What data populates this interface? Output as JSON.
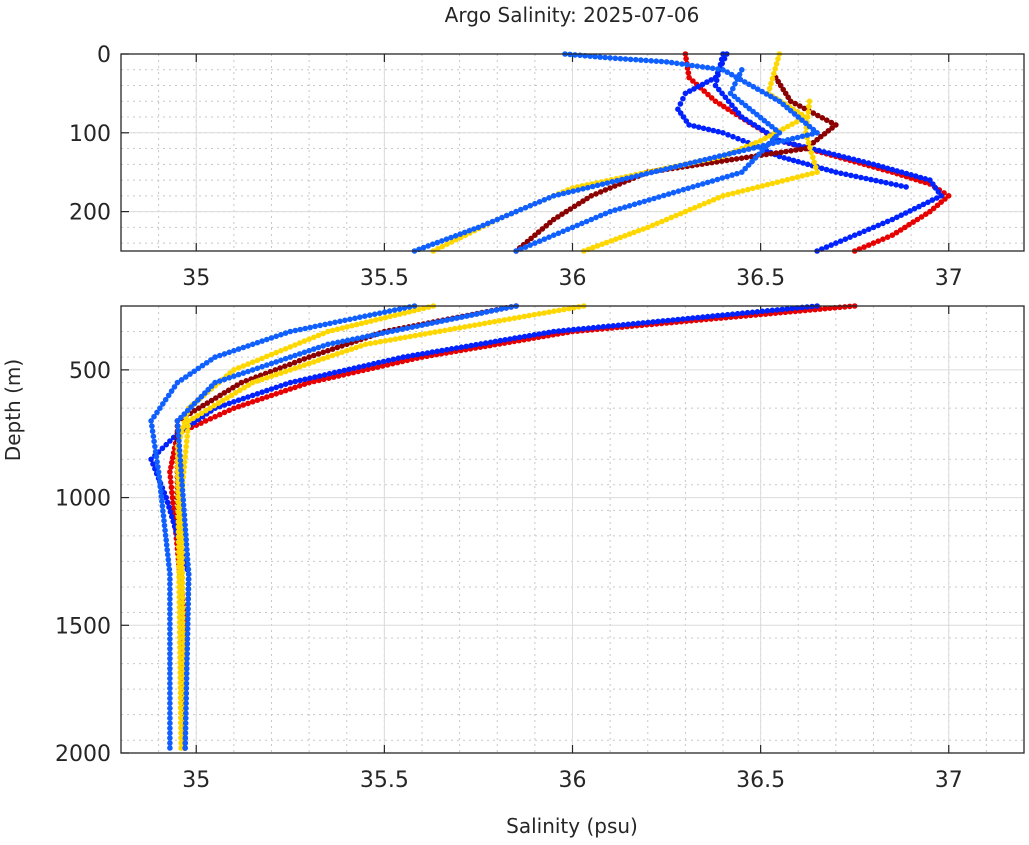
{
  "chart_data": {
    "type": "scatter",
    "title": "Argo Salinity: 2025-07-06",
    "xlabel": "Salinity (psu)",
    "ylabel": "Depth (m)",
    "grid": true,
    "panels": [
      {
        "xlim": [
          34.8,
          37.2
        ],
        "ylim": [
          0,
          250
        ],
        "xticks": [
          35,
          35.5,
          36,
          36.5,
          37
        ],
        "xtick_labels": [
          "35",
          "35.5",
          "36",
          "36.5",
          "37"
        ],
        "yticks": [
          0,
          100,
          200
        ],
        "ytick_labels": [
          "0",
          "100",
          "200"
        ]
      },
      {
        "xlim": [
          34.8,
          37.2
        ],
        "ylim": [
          250,
          2000
        ],
        "xticks": [
          35,
          35.5,
          36,
          36.5,
          37
        ],
        "xtick_labels": [
          "35",
          "35.5",
          "36",
          "36.5",
          "37"
        ],
        "yticks": [
          500,
          1000,
          1500,
          2000
        ],
        "ytick_labels": [
          "500",
          "1000",
          "1500",
          "2000"
        ]
      }
    ],
    "series": [
      {
        "color": "#e60000",
        "points": [
          [
            0,
            36.3
          ],
          [
            30,
            36.31
          ],
          [
            60,
            36.38
          ],
          [
            90,
            36.48
          ],
          [
            110,
            36.55
          ],
          [
            130,
            36.7
          ],
          [
            150,
            36.85
          ],
          [
            165,
            36.95
          ],
          [
            180,
            37.0
          ],
          [
            200,
            36.95
          ],
          [
            230,
            36.85
          ],
          [
            250,
            36.75
          ],
          [
            350,
            36.0
          ],
          [
            450,
            35.6
          ],
          [
            550,
            35.3
          ],
          [
            650,
            35.1
          ],
          [
            750,
            34.95
          ],
          [
            900,
            34.93
          ],
          [
            1200,
            34.95
          ],
          [
            1500,
            34.97
          ],
          [
            2000,
            34.97
          ]
        ]
      },
      {
        "color": "#0022ff",
        "points": [
          [
            0,
            36.4
          ],
          [
            40,
            36.38
          ],
          [
            80,
            36.45
          ],
          [
            110,
            36.55
          ],
          [
            140,
            36.8
          ],
          [
            160,
            36.95
          ],
          [
            180,
            36.98
          ],
          [
            210,
            36.85
          ],
          [
            250,
            36.65
          ],
          [
            350,
            35.95
          ],
          [
            450,
            35.55
          ],
          [
            550,
            35.25
          ],
          [
            650,
            35.05
          ],
          [
            750,
            34.95
          ],
          [
            850,
            34.88
          ],
          [
            1000,
            34.92
          ],
          [
            1300,
            34.98
          ],
          [
            2000,
            34.97
          ]
        ]
      },
      {
        "color": "#0022ff",
        "points": [
          [
            0,
            36.41
          ],
          [
            30,
            36.38
          ],
          [
            50,
            36.3
          ],
          [
            70,
            36.28
          ],
          [
            90,
            36.31
          ],
          [
            100,
            36.4
          ],
          [
            115,
            36.48
          ],
          [
            130,
            36.55
          ],
          [
            150,
            36.7
          ],
          [
            170,
            36.9
          ]
        ]
      },
      {
        "color": "#8b0000",
        "points": [
          [
            30,
            36.54
          ],
          [
            60,
            36.58
          ],
          [
            90,
            36.7
          ],
          [
            120,
            36.62
          ],
          [
            150,
            36.2
          ],
          [
            180,
            36.05
          ],
          [
            210,
            35.95
          ],
          [
            250,
            35.85
          ],
          [
            350,
            35.5
          ],
          [
            450,
            35.3
          ],
          [
            550,
            35.12
          ],
          [
            700,
            34.95
          ],
          [
            1000,
            34.95
          ],
          [
            1300,
            34.96
          ],
          [
            2000,
            34.97
          ]
        ]
      },
      {
        "color": "#ffd700",
        "points": [
          [
            0,
            36.55
          ],
          [
            50,
            36.52
          ],
          [
            80,
            36.62
          ],
          [
            110,
            36.5
          ],
          [
            130,
            36.4
          ],
          [
            170,
            36.0
          ],
          [
            210,
            35.8
          ],
          [
            250,
            35.63
          ],
          [
            350,
            35.35
          ],
          [
            500,
            35.1
          ],
          [
            650,
            34.98
          ],
          [
            800,
            34.95
          ],
          [
            2000,
            34.96
          ]
        ]
      },
      {
        "color": "#ffd700",
        "points": [
          [
            60,
            36.63
          ],
          [
            100,
            36.62
          ],
          [
            150,
            36.65
          ],
          [
            180,
            36.4
          ],
          [
            220,
            36.2
          ],
          [
            250,
            36.03
          ],
          [
            400,
            35.45
          ],
          [
            550,
            35.15
          ],
          [
            700,
            34.98
          ],
          [
            1000,
            34.96
          ],
          [
            2000,
            34.97
          ]
        ]
      },
      {
        "color": "#1060ff",
        "points": [
          [
            0,
            35.98
          ],
          [
            5,
            36.1
          ],
          [
            10,
            36.25
          ],
          [
            20,
            36.4
          ],
          [
            60,
            36.55
          ],
          [
            100,
            36.65
          ],
          [
            140,
            36.3
          ],
          [
            180,
            35.95
          ],
          [
            220,
            35.75
          ],
          [
            250,
            35.58
          ],
          [
            350,
            35.25
          ],
          [
            450,
            35.05
          ],
          [
            550,
            34.95
          ],
          [
            700,
            34.88
          ],
          [
            900,
            34.9
          ],
          [
            1300,
            34.93
          ],
          [
            2000,
            34.93
          ]
        ]
      },
      {
        "color": "#1060ff",
        "points": [
          [
            20,
            36.45
          ],
          [
            50,
            36.42
          ],
          [
            100,
            36.55
          ],
          [
            150,
            36.45
          ],
          [
            200,
            36.1
          ],
          [
            250,
            35.85
          ],
          [
            400,
            35.35
          ],
          [
            550,
            35.05
          ],
          [
            700,
            34.95
          ],
          [
            1300,
            34.98
          ],
          [
            2000,
            34.97
          ]
        ]
      }
    ]
  }
}
